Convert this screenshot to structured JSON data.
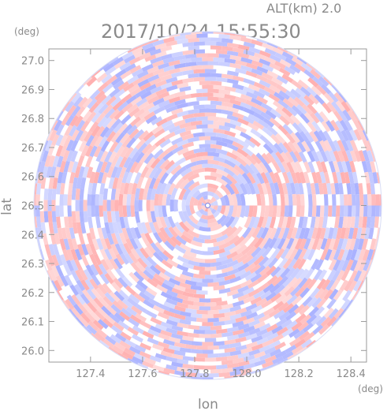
{
  "header": {
    "alt_label": "ALT(km)  2.0",
    "timestamp": "2017/10/24 15:55:30"
  },
  "chart_data": {
    "type": "heatmap",
    "title": "2017/10/24 15:55:30",
    "subtitle": "ALT(km)  2.0",
    "xlabel": "lon",
    "ylabel": "lat",
    "x_unit": "(deg)",
    "y_unit": "(deg)",
    "xlim": [
      127.24,
      128.46
    ],
    "ylim": [
      25.96,
      27.04
    ],
    "x_ticks": [
      "127.4",
      "127.6",
      "127.8",
      "128.0",
      "128.2",
      "128.4"
    ],
    "y_ticks": [
      "26.0",
      "26.1",
      "26.2",
      "26.3",
      "26.4",
      "26.5",
      "26.6",
      "26.7",
      "26.8",
      "26.9",
      "27.0"
    ],
    "center": {
      "lon": 127.85,
      "lat": 26.5
    },
    "radius_deg": 0.6,
    "colormap": {
      "negative": "#aab2ff",
      "zero": "#ffffff",
      "positive": "#ffb0b0"
    },
    "grid": false
  }
}
